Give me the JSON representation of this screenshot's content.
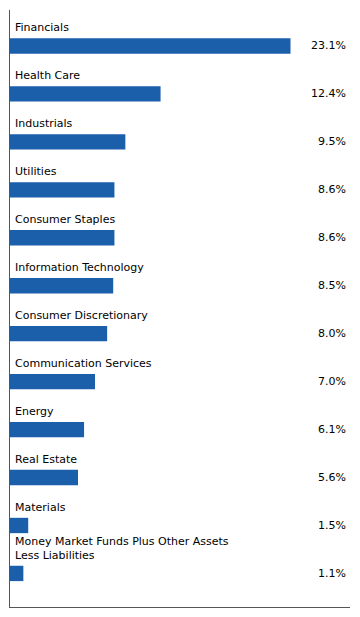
{
  "chart_data": {
    "type": "bar",
    "orientation": "horizontal",
    "categories": [
      "Financials",
      "Health Care",
      "Industrials",
      "Utilities",
      "Consumer Staples",
      "Information Technology",
      "Consumer Discretionary",
      "Communication Services",
      "Energy",
      "Real Estate",
      "Materials",
      "Money Market Funds Plus Other Assets\nLess Liabilities"
    ],
    "values": [
      23.1,
      12.4,
      9.5,
      8.6,
      8.6,
      8.5,
      8.0,
      7.0,
      6.1,
      5.6,
      1.5,
      1.1
    ],
    "value_labels": [
      "23.1%",
      "12.4%",
      "9.5%",
      "8.6%",
      "8.6%",
      "8.5%",
      "8.0%",
      "7.0%",
      "6.1%",
      "5.6%",
      "1.5%",
      "1.1%"
    ],
    "color": "#1b5faa",
    "xlim": [
      0,
      28
    ],
    "tick_labels": false,
    "data_labels": true,
    "grid": false
  }
}
